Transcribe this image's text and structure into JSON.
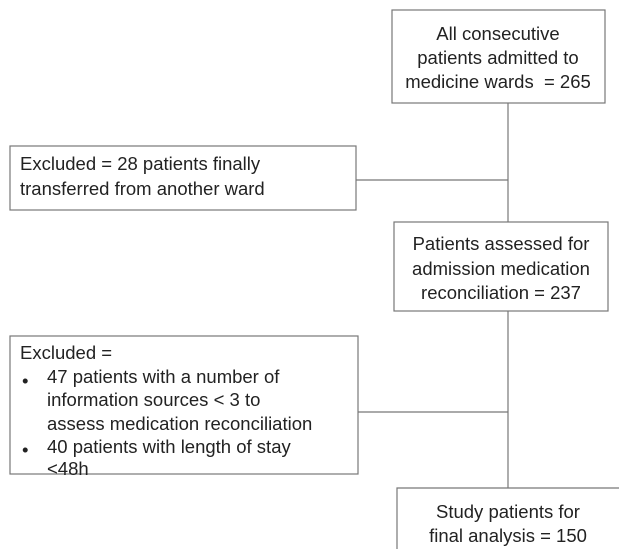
{
  "nodes": [
    {
      "lines": [
        "All consecutive",
        "patients admitted to",
        "medicine wards  = 265"
      ]
    },
    {
      "lines": [
        "Excluded = 28 patients finally",
        "transferred from another ward"
      ]
    },
    {
      "lines": [
        "Patients assessed for",
        "admission medication",
        "reconciliation = 237"
      ]
    },
    {
      "heading": "Excluded =",
      "bullets": [
        {
          "lines": [
            "47 patients with a number of",
            "information sources < 3 to",
            "assess medication reconciliation"
          ]
        },
        {
          "lines": [
            "40 patients with length of stay",
            "<48h"
          ]
        }
      ]
    },
    {
      "lines": [
        "Study patients for",
        "final analysis = 150"
      ]
    }
  ]
}
